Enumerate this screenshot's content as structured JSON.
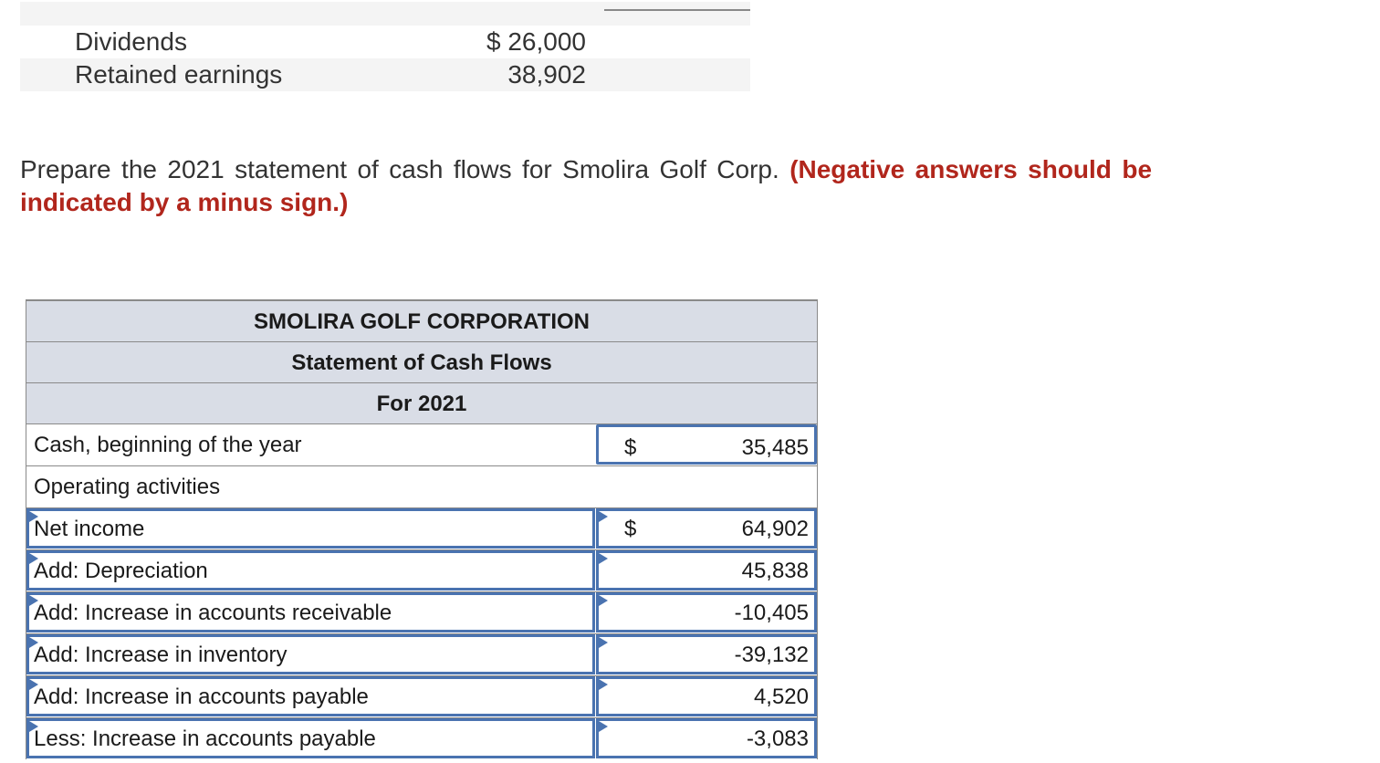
{
  "top_table": {
    "rows": [
      {
        "label": "Dividends",
        "amount": "$ 26,000"
      },
      {
        "label": "Retained earnings",
        "amount": "38,902"
      }
    ]
  },
  "instructions": {
    "text": "Prepare the 2021 statement of cash flows for Smolira Golf Corp.",
    "note": "(Negative answers should be indicated by a minus sign.)"
  },
  "statement": {
    "company": "SMOLIRA GOLF CORPORATION",
    "title": "Statement of Cash Flows",
    "period": "For 2021",
    "cash_begin": {
      "label": "Cash, beginning of the year",
      "currency": "$",
      "value": "35,485"
    },
    "operating_heading": "Operating activities",
    "rows": [
      {
        "label": "Net income",
        "currency": "$",
        "value": "64,902"
      },
      {
        "label": "Add: Depreciation",
        "currency": "",
        "value": "45,838"
      },
      {
        "label": "Add: Increase in accounts receivable",
        "currency": "",
        "value": "-10,405"
      },
      {
        "label": "Add: Increase in inventory",
        "currency": "",
        "value": "-39,132"
      },
      {
        "label": "Add: Increase in accounts payable",
        "currency": "",
        "value": "4,520"
      },
      {
        "label": "Less: Increase in accounts payable",
        "currency": "",
        "value": "-3,083"
      }
    ]
  }
}
